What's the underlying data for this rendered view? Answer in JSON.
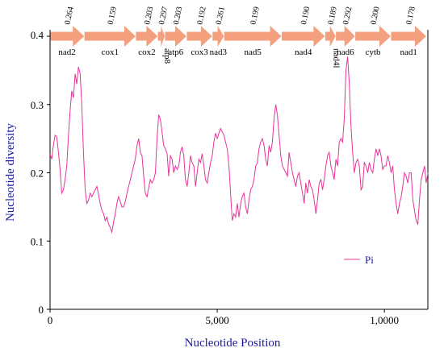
{
  "chart_data": {
    "type": "line",
    "xlabel": "Nucleotide Position",
    "ylabel": "Nucleotide diversity",
    "xlim": [
      0,
      11300
    ],
    "ylim": [
      0,
      0.4
    ],
    "x_ticks": [
      0,
      5000,
      10000
    ],
    "x_tick_labels": [
      "0",
      "5,000",
      "1,0000"
    ],
    "y_ticks": [
      0,
      0.1,
      0.2,
      0.3,
      0.4
    ],
    "y_tick_labels": [
      "0",
      "0.1",
      "0.2",
      "0.3",
      "0.4"
    ],
    "legend": {
      "entries": [
        "Pi"
      ],
      "placement": "lower-right"
    },
    "line_color": "#e8349a",
    "arrow_color": "#f4a07e",
    "genes": [
      {
        "name": "nad2",
        "start": 0,
        "end": 1020,
        "pi": "0.264"
      },
      {
        "name": "cox1",
        "start": 1030,
        "end": 2560,
        "pi": "0.159"
      },
      {
        "name": "cox2",
        "start": 2570,
        "end": 3220,
        "pi": "0.203"
      },
      {
        "name": "atp8",
        "start": 3225,
        "end": 3430,
        "pi": "0.297",
        "label_rotated": true
      },
      {
        "name": "atp6",
        "start": 3440,
        "end": 4080,
        "pi": "0.203"
      },
      {
        "name": "cox3",
        "start": 4090,
        "end": 4850,
        "pi": "0.192"
      },
      {
        "name": "nad3",
        "start": 4860,
        "end": 5200,
        "pi": "0.261"
      },
      {
        "name": "nad5",
        "start": 5210,
        "end": 6920,
        "pi": "0.199"
      },
      {
        "name": "nad4",
        "start": 6930,
        "end": 8220,
        "pi": "0.190"
      },
      {
        "name": "nad4l",
        "start": 8230,
        "end": 8540,
        "pi": "0.189",
        "label_rotated": true
      },
      {
        "name": "nad6",
        "start": 8550,
        "end": 9120,
        "pi": "0.292"
      },
      {
        "name": "cytb",
        "start": 9130,
        "end": 10190,
        "pi": "0.200"
      },
      {
        "name": "nad1",
        "start": 10200,
        "end": 11250,
        "pi": "0.178"
      }
    ],
    "series": [
      {
        "name": "Pi",
        "points": [
          [
            0,
            0.227
          ],
          [
            50,
            0.22
          ],
          [
            100,
            0.24
          ],
          [
            150,
            0.255
          ],
          [
            200,
            0.253
          ],
          [
            250,
            0.23
          ],
          [
            300,
            0.205
          ],
          [
            350,
            0.17
          ],
          [
            400,
            0.175
          ],
          [
            450,
            0.19
          ],
          [
            500,
            0.21
          ],
          [
            550,
            0.255
          ],
          [
            600,
            0.29
          ],
          [
            650,
            0.32
          ],
          [
            700,
            0.31
          ],
          [
            750,
            0.345
          ],
          [
            800,
            0.33
          ],
          [
            850,
            0.355
          ],
          [
            900,
            0.345
          ],
          [
            950,
            0.3
          ],
          [
            1000,
            0.23
          ],
          [
            1050,
            0.175
          ],
          [
            1100,
            0.155
          ],
          [
            1150,
            0.16
          ],
          [
            1200,
            0.17
          ],
          [
            1250,
            0.165
          ],
          [
            1300,
            0.17
          ],
          [
            1350,
            0.175
          ],
          [
            1400,
            0.18
          ],
          [
            1450,
            0.168
          ],
          [
            1500,
            0.155
          ],
          [
            1550,
            0.145
          ],
          [
            1600,
            0.14
          ],
          [
            1650,
            0.13
          ],
          [
            1700,
            0.135
          ],
          [
            1750,
            0.125
          ],
          [
            1800,
            0.12
          ],
          [
            1850,
            0.113
          ],
          [
            1900,
            0.128
          ],
          [
            1950,
            0.14
          ],
          [
            2000,
            0.155
          ],
          [
            2050,
            0.165
          ],
          [
            2100,
            0.158
          ],
          [
            2150,
            0.15
          ],
          [
            2200,
            0.15
          ],
          [
            2250,
            0.158
          ],
          [
            2300,
            0.17
          ],
          [
            2350,
            0.18
          ],
          [
            2400,
            0.19
          ],
          [
            2450,
            0.2
          ],
          [
            2500,
            0.21
          ],
          [
            2550,
            0.22
          ],
          [
            2600,
            0.24
          ],
          [
            2650,
            0.25
          ],
          [
            2700,
            0.23
          ],
          [
            2750,
            0.225
          ],
          [
            2800,
            0.195
          ],
          [
            2850,
            0.17
          ],
          [
            2900,
            0.165
          ],
          [
            2950,
            0.178
          ],
          [
            3000,
            0.19
          ],
          [
            3050,
            0.185
          ],
          [
            3100,
            0.19
          ],
          [
            3150,
            0.2
          ],
          [
            3200,
            0.25
          ],
          [
            3250,
            0.285
          ],
          [
            3300,
            0.278
          ],
          [
            3350,
            0.26
          ],
          [
            3400,
            0.24
          ],
          [
            3450,
            0.235
          ],
          [
            3500,
            0.228
          ],
          [
            3550,
            0.195
          ],
          [
            3600,
            0.225
          ],
          [
            3650,
            0.22
          ],
          [
            3700,
            0.2
          ],
          [
            3750,
            0.21
          ],
          [
            3800,
            0.205
          ],
          [
            3850,
            0.21
          ],
          [
            3900,
            0.23
          ],
          [
            3950,
            0.238
          ],
          [
            4000,
            0.225
          ],
          [
            4050,
            0.19
          ],
          [
            4100,
            0.18
          ],
          [
            4150,
            0.2
          ],
          [
            4200,
            0.225
          ],
          [
            4250,
            0.215
          ],
          [
            4300,
            0.21
          ],
          [
            4350,
            0.18
          ],
          [
            4400,
            0.2
          ],
          [
            4450,
            0.22
          ],
          [
            4500,
            0.215
          ],
          [
            4550,
            0.228
          ],
          [
            4600,
            0.21
          ],
          [
            4650,
            0.19
          ],
          [
            4700,
            0.185
          ],
          [
            4750,
            0.2
          ],
          [
            4800,
            0.215
          ],
          [
            4850,
            0.225
          ],
          [
            4900,
            0.245
          ],
          [
            4950,
            0.258
          ],
          [
            5000,
            0.25
          ],
          [
            5050,
            0.258
          ],
          [
            5100,
            0.265
          ],
          [
            5150,
            0.26
          ],
          [
            5200,
            0.255
          ],
          [
            5250,
            0.245
          ],
          [
            5300,
            0.235
          ],
          [
            5350,
            0.21
          ],
          [
            5400,
            0.17
          ],
          [
            5450,
            0.13
          ],
          [
            5500,
            0.14
          ],
          [
            5550,
            0.135
          ],
          [
            5600,
            0.155
          ],
          [
            5650,
            0.135
          ],
          [
            5700,
            0.155
          ],
          [
            5750,
            0.165
          ],
          [
            5800,
            0.17
          ],
          [
            5850,
            0.15
          ],
          [
            5900,
            0.14
          ],
          [
            5950,
            0.16
          ],
          [
            6000,
            0.175
          ],
          [
            6050,
            0.18
          ],
          [
            6100,
            0.19
          ],
          [
            6150,
            0.21
          ],
          [
            6200,
            0.215
          ],
          [
            6250,
            0.235
          ],
          [
            6300,
            0.245
          ],
          [
            6350,
            0.25
          ],
          [
            6400,
            0.24
          ],
          [
            6450,
            0.22
          ],
          [
            6500,
            0.21
          ],
          [
            6550,
            0.24
          ],
          [
            6600,
            0.23
          ],
          [
            6650,
            0.245
          ],
          [
            6700,
            0.28
          ],
          [
            6750,
            0.3
          ],
          [
            6800,
            0.285
          ],
          [
            6850,
            0.255
          ],
          [
            6900,
            0.225
          ],
          [
            6950,
            0.21
          ],
          [
            7000,
            0.205
          ],
          [
            7050,
            0.2
          ],
          [
            7100,
            0.195
          ],
          [
            7150,
            0.23
          ],
          [
            7200,
            0.215
          ],
          [
            7250,
            0.2
          ],
          [
            7300,
            0.19
          ],
          [
            7350,
            0.18
          ],
          [
            7400,
            0.195
          ],
          [
            7450,
            0.2
          ],
          [
            7500,
            0.185
          ],
          [
            7550,
            0.17
          ],
          [
            7600,
            0.155
          ],
          [
            7650,
            0.185
          ],
          [
            7700,
            0.17
          ],
          [
            7750,
            0.19
          ],
          [
            7800,
            0.18
          ],
          [
            7850,
            0.175
          ],
          [
            7900,
            0.16
          ],
          [
            7950,
            0.14
          ],
          [
            8000,
            0.16
          ],
          [
            8050,
            0.185
          ],
          [
            8100,
            0.19
          ],
          [
            8150,
            0.175
          ],
          [
            8200,
            0.19
          ],
          [
            8250,
            0.21
          ],
          [
            8300,
            0.225
          ],
          [
            8350,
            0.23
          ],
          [
            8400,
            0.21
          ],
          [
            8450,
            0.2
          ],
          [
            8500,
            0.19
          ],
          [
            8550,
            0.22
          ],
          [
            8600,
            0.21
          ],
          [
            8650,
            0.245
          ],
          [
            8700,
            0.25
          ],
          [
            8750,
            0.245
          ],
          [
            8800,
            0.28
          ],
          [
            8850,
            0.35
          ],
          [
            8900,
            0.37
          ],
          [
            8950,
            0.33
          ],
          [
            9000,
            0.27
          ],
          [
            9050,
            0.23
          ],
          [
            9100,
            0.2
          ],
          [
            9150,
            0.215
          ],
          [
            9200,
            0.22
          ],
          [
            9250,
            0.21
          ],
          [
            9300,
            0.175
          ],
          [
            9350,
            0.18
          ],
          [
            9400,
            0.215
          ],
          [
            9450,
            0.21
          ],
          [
            9500,
            0.2
          ],
          [
            9550,
            0.215
          ],
          [
            9600,
            0.205
          ],
          [
            9650,
            0.2
          ],
          [
            9700,
            0.22
          ],
          [
            9750,
            0.235
          ],
          [
            9800,
            0.225
          ],
          [
            9850,
            0.235
          ],
          [
            9900,
            0.225
          ],
          [
            9950,
            0.205
          ],
          [
            10000,
            0.21
          ],
          [
            10050,
            0.21
          ],
          [
            10100,
            0.225
          ],
          [
            10150,
            0.215
          ],
          [
            10200,
            0.2
          ],
          [
            10250,
            0.21
          ],
          [
            10300,
            0.175
          ],
          [
            10350,
            0.155
          ],
          [
            10400,
            0.14
          ],
          [
            10450,
            0.155
          ],
          [
            10500,
            0.165
          ],
          [
            10550,
            0.18
          ],
          [
            10600,
            0.2
          ],
          [
            10650,
            0.195
          ],
          [
            10700,
            0.185
          ],
          [
            10750,
            0.2
          ],
          [
            10800,
            0.2
          ],
          [
            10850,
            0.16
          ],
          [
            10900,
            0.145
          ],
          [
            10950,
            0.13
          ],
          [
            11000,
            0.125
          ],
          [
            11050,
            0.16
          ],
          [
            11100,
            0.19
          ],
          [
            11150,
            0.2
          ],
          [
            11200,
            0.21
          ],
          [
            11250,
            0.185
          ],
          [
            11300,
            0.2
          ]
        ]
      }
    ]
  }
}
